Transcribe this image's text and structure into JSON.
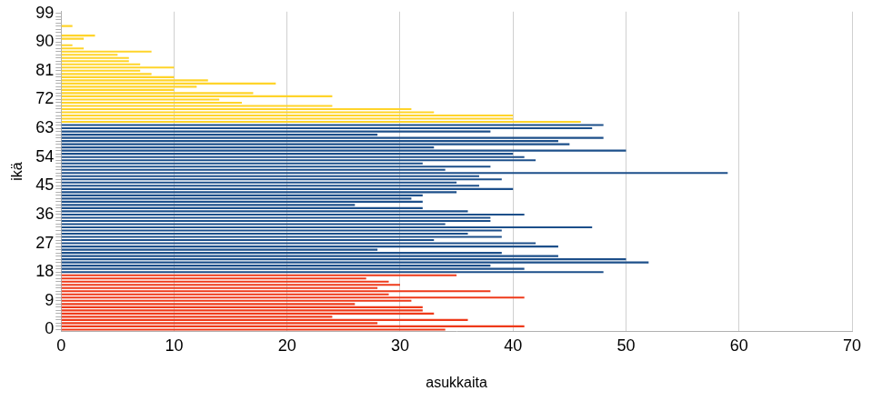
{
  "chart_data": {
    "type": "bar",
    "orientation": "horizontal",
    "x_label": "asukkaita",
    "y_label": "ikä",
    "categories": [
      "0",
      null,
      null,
      null,
      null,
      null,
      null,
      null,
      null,
      "9",
      null,
      null,
      null,
      null,
      null,
      null,
      null,
      null,
      "18",
      null,
      null,
      null,
      null,
      null,
      null,
      null,
      null,
      "27",
      null,
      null,
      null,
      null,
      null,
      null,
      null,
      null,
      "36",
      null,
      null,
      null,
      null,
      null,
      null,
      null,
      null,
      "45",
      null,
      null,
      null,
      null,
      null,
      null,
      null,
      null,
      "54",
      null,
      null,
      null,
      null,
      null,
      null,
      null,
      null,
      "63",
      null,
      null,
      null,
      null,
      null,
      null,
      null,
      null,
      "72",
      null,
      null,
      null,
      null,
      null,
      null,
      null,
      null,
      "81",
      null,
      null,
      null,
      null,
      null,
      null,
      null,
      null,
      "90",
      null,
      null,
      null,
      null,
      null,
      null,
      null,
      null,
      "99"
    ],
    "values": [
      34,
      41,
      28,
      36,
      24,
      33,
      32,
      32,
      26,
      31,
      41,
      29,
      38,
      28,
      30,
      29,
      27,
      35,
      48,
      41,
      38,
      52,
      50,
      44,
      39,
      28,
      44,
      42,
      33,
      39,
      36,
      39,
      47,
      34,
      38,
      38,
      41,
      36,
      32,
      26,
      32,
      31,
      32,
      35,
      40,
      37,
      35,
      39,
      37,
      59,
      34,
      38,
      32,
      42,
      41,
      40,
      50,
      33,
      45,
      44,
      48,
      28,
      38,
      47,
      48,
      46,
      40,
      40,
      33,
      31,
      24,
      16,
      14,
      24,
      17,
      10,
      12,
      19,
      13,
      10,
      8,
      7,
      10,
      7,
      6,
      6,
      5,
      8,
      2,
      1,
      0,
      2,
      3,
      0,
      0,
      1,
      0,
      0,
      0,
      0
    ],
    "colors": [
      "#ee3a1a",
      "#ee3a1a",
      "#ee3a1a",
      "#ee3a1a",
      "#ee3a1a",
      "#ee3a1a",
      "#ee3a1a",
      "#ee3a1a",
      "#ee3a1a",
      "#ee3a1a",
      "#ee3a1a",
      "#ee3a1a",
      "#ee3a1a",
      "#ee3a1a",
      "#ee3a1a",
      "#ee3a1a",
      "#ee3a1a",
      "#ee3a1a",
      "#1c4f8a",
      "#1c4f8a",
      "#1c4f8a",
      "#1c4f8a",
      "#1c4f8a",
      "#1c4f8a",
      "#1c4f8a",
      "#1c4f8a",
      "#1c4f8a",
      "#1c4f8a",
      "#1c4f8a",
      "#1c4f8a",
      "#1c4f8a",
      "#1c4f8a",
      "#1c4f8a",
      "#1c4f8a",
      "#1c4f8a",
      "#1c4f8a",
      "#1c4f8a",
      "#1c4f8a",
      "#1c4f8a",
      "#1c4f8a",
      "#1c4f8a",
      "#1c4f8a",
      "#1c4f8a",
      "#1c4f8a",
      "#1c4f8a",
      "#1c4f8a",
      "#1c4f8a",
      "#1c4f8a",
      "#1c4f8a",
      "#1c4f8a",
      "#1c4f8a",
      "#1c4f8a",
      "#1c4f8a",
      "#1c4f8a",
      "#1c4f8a",
      "#1c4f8a",
      "#1c4f8a",
      "#1c4f8a",
      "#1c4f8a",
      "#1c4f8a",
      "#1c4f8a",
      "#1c4f8a",
      "#1c4f8a",
      "#1c4f8a",
      "#1c4f8a",
      "#ffd42a",
      "#ffd42a",
      "#ffd42a",
      "#ffd42a",
      "#ffd42a",
      "#ffd42a",
      "#ffd42a",
      "#ffd42a",
      "#ffd42a",
      "#ffd42a",
      "#ffd42a",
      "#ffd42a",
      "#ffd42a",
      "#ffd42a",
      "#ffd42a",
      "#ffd42a",
      "#ffd42a",
      "#ffd42a",
      "#ffd42a",
      "#ffd42a",
      "#ffd42a",
      "#ffd42a",
      "#ffd42a",
      "#ffd42a",
      "#ffd42a",
      "#ffd42a",
      "#ffd42a",
      "#ffd42a",
      "#ffd42a",
      "#ffd42a",
      "#ffd42a",
      "#ffd42a",
      "#ffd42a",
      "#ffd42a",
      "#ffd42a"
    ],
    "xlim": [
      0,
      70
    ],
    "xticks": [
      0,
      10,
      20,
      30,
      40,
      50,
      60,
      70
    ],
    "grid": true
  }
}
